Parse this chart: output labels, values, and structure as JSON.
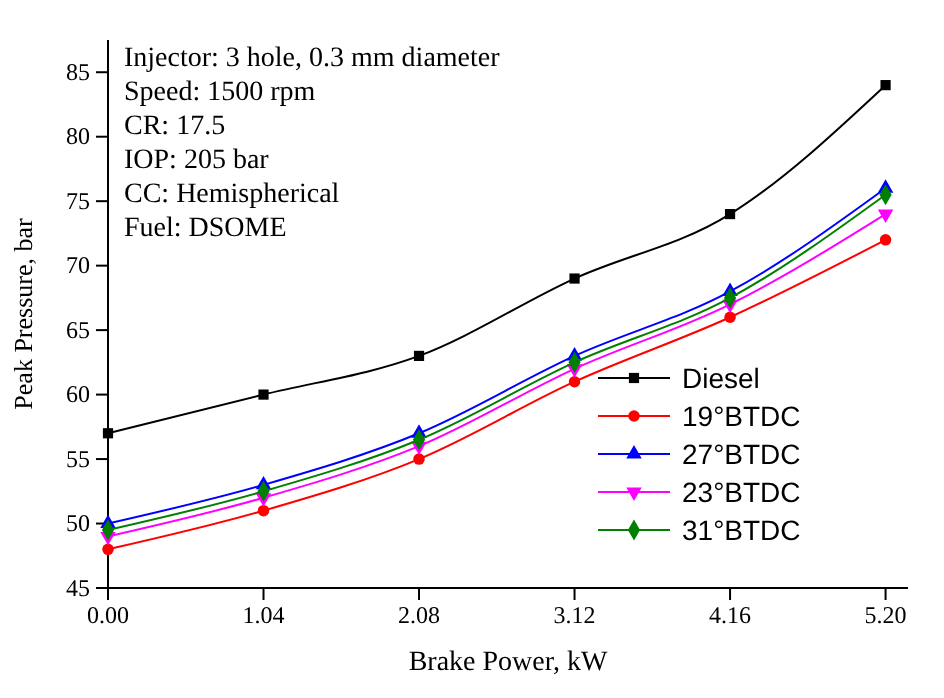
{
  "chart_data": {
    "type": "line",
    "xlabel": "Brake Power, kW",
    "ylabel": "Peak Pressure, bar",
    "annotations": [
      "Injector: 3 hole, 0.3 mm diameter",
      "Speed: 1500 rpm",
      "CR: 17.5",
      "IOP: 205 bar",
      "CC: Hemispherical",
      "Fuel: DSOME"
    ],
    "x": [
      0,
      1.04,
      2.08,
      3.12,
      4.16,
      5.2
    ],
    "series": [
      {
        "name": "Diesel",
        "color": "#000000",
        "marker": "square",
        "values": [
          57,
          60,
          63,
          69,
          74,
          84
        ]
      },
      {
        "name": "19°BTDC",
        "color": "#ff0000",
        "marker": "circle",
        "values": [
          48,
          51,
          55,
          61,
          66,
          72
        ]
      },
      {
        "name": "27°BTDC",
        "color": "#0000ff",
        "marker": "triangle",
        "values": [
          50,
          53,
          57,
          63,
          68,
          76
        ]
      },
      {
        "name": "23°BTDC",
        "color": "#ff00ff",
        "marker": "triangle-down",
        "values": [
          49,
          52,
          56,
          62,
          67,
          74
        ]
      },
      {
        "name": "31°BTDC",
        "color": "#008000",
        "marker": "diamond",
        "values": [
          49.5,
          52.5,
          56.5,
          62.5,
          67.5,
          75.5
        ]
      }
    ],
    "xlim": [
      0,
      5.35
    ],
    "ylim": [
      45,
      87.5
    ],
    "xticks": [
      {
        "value": 0,
        "label": "0.00"
      },
      {
        "value": 1.04,
        "label": "1.04"
      },
      {
        "value": 2.08,
        "label": "2.08"
      },
      {
        "value": 3.12,
        "label": "3.12"
      },
      {
        "value": 4.16,
        "label": "4.16"
      },
      {
        "value": 5.2,
        "label": "5.20"
      }
    ],
    "yticks": [
      45,
      50,
      55,
      60,
      65,
      70,
      75,
      80,
      85
    ],
    "grid": false,
    "legend": "bottom right",
    "line_style": "solid"
  }
}
